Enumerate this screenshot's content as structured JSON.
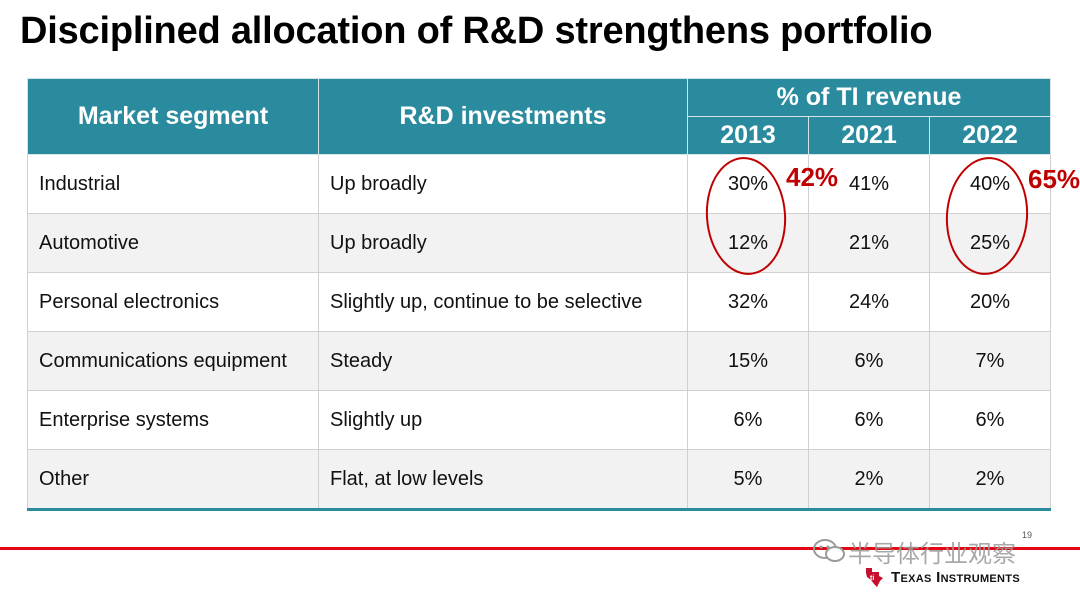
{
  "title": "Disciplined allocation of R&D strengthens portfolio",
  "table": {
    "headers": {
      "segment": "Market segment",
      "investments": "R&D investments",
      "revenue_group": "% of TI revenue",
      "years": [
        "2013",
        "2021",
        "2022"
      ]
    },
    "rows": [
      {
        "segment": "Industrial",
        "investment": "Up broadly",
        "y2013": "30%",
        "y2021": "41%",
        "y2022": "40%"
      },
      {
        "segment": "Automotive",
        "investment": "Up broadly",
        "y2013": "12%",
        "y2021": "21%",
        "y2022": "25%"
      },
      {
        "segment": "Personal electronics",
        "investment": "Slightly up, continue to be selective",
        "y2013": "32%",
        "y2021": "24%",
        "y2022": "20%"
      },
      {
        "segment": "Communications equipment",
        "investment": "Steady",
        "y2013": "15%",
        "y2021": "6%",
        "y2022": "7%"
      },
      {
        "segment": "Enterprise systems",
        "investment": "Slightly up",
        "y2013": "6%",
        "y2021": "6%",
        "y2022": "6%"
      },
      {
        "segment": "Other",
        "investment": "Flat, at low levels",
        "y2013": "5%",
        "y2021": "2%",
        "y2022": "2%"
      }
    ]
  },
  "annotations": {
    "sum_2013": "42%",
    "sum_2022": "65%"
  },
  "footer": {
    "page_number": "19",
    "watermark": "半导体行业观察",
    "logo_text": "Texas Instruments",
    "accent_color": "#e30613",
    "header_color": "#2a8a9e"
  }
}
